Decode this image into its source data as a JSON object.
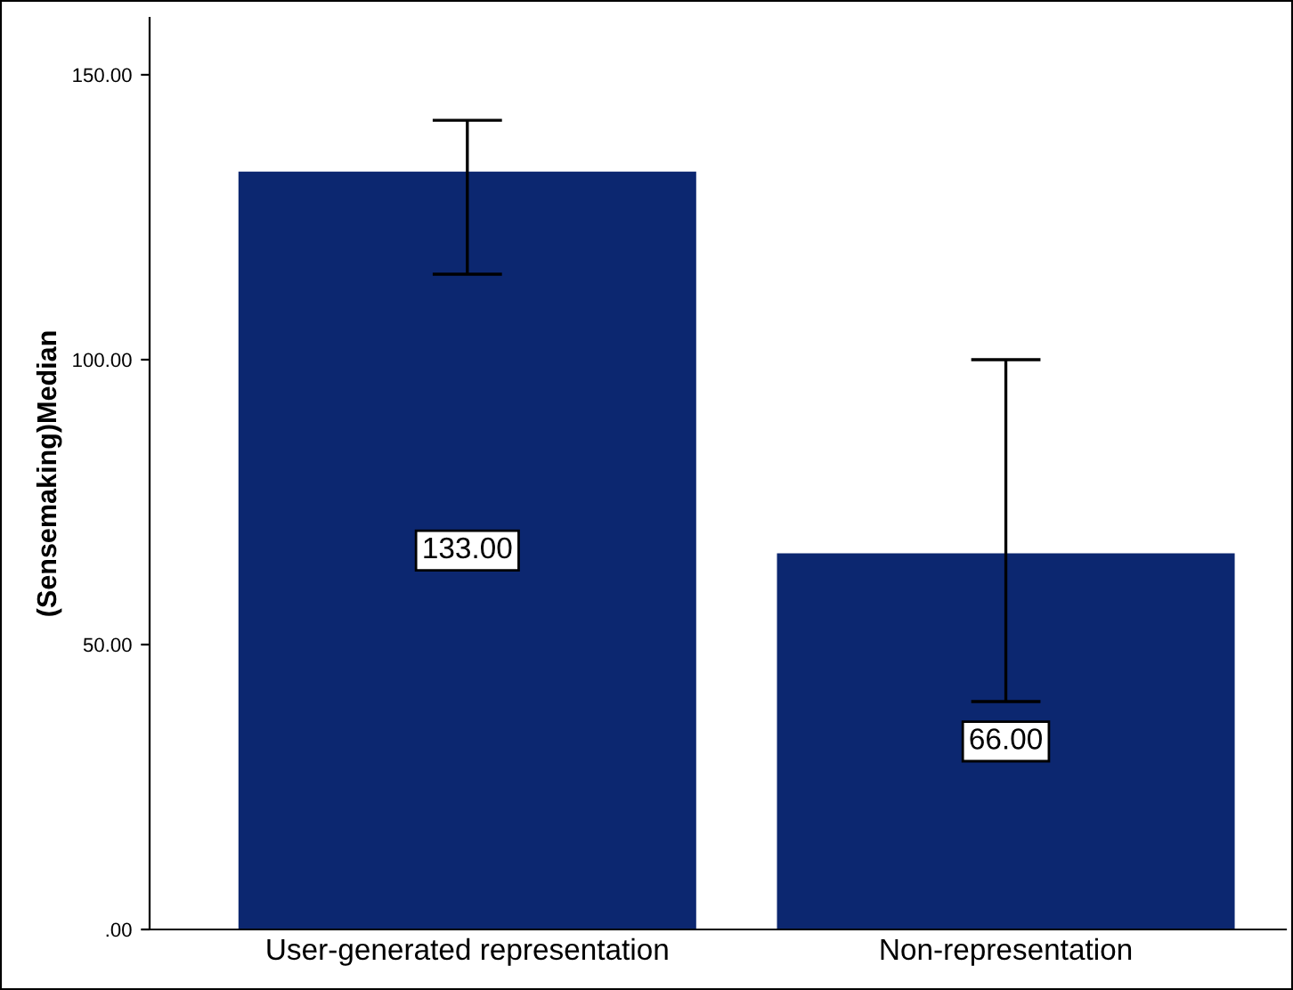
{
  "chart_data": {
    "type": "bar",
    "ylabel": "(Sensemaking)Median",
    "categories": [
      "User-generated representation",
      "Non-representation"
    ],
    "values": [
      133,
      66
    ],
    "color": "#0c2770",
    "errors": [
      [
        115,
        142
      ],
      [
        40,
        100
      ]
    ],
    "value_labels": [
      "133.00",
      "66.00"
    ],
    "ylim": [
      0,
      160
    ],
    "yticks": [
      {
        "value": 0,
        "label": ".00"
      },
      {
        "value": 50,
        "label": "50.00"
      },
      {
        "value": 100,
        "label": "100.00"
      },
      {
        "value": 150,
        "label": "150.00"
      }
    ],
    "grid": false,
    "legend": false
  }
}
